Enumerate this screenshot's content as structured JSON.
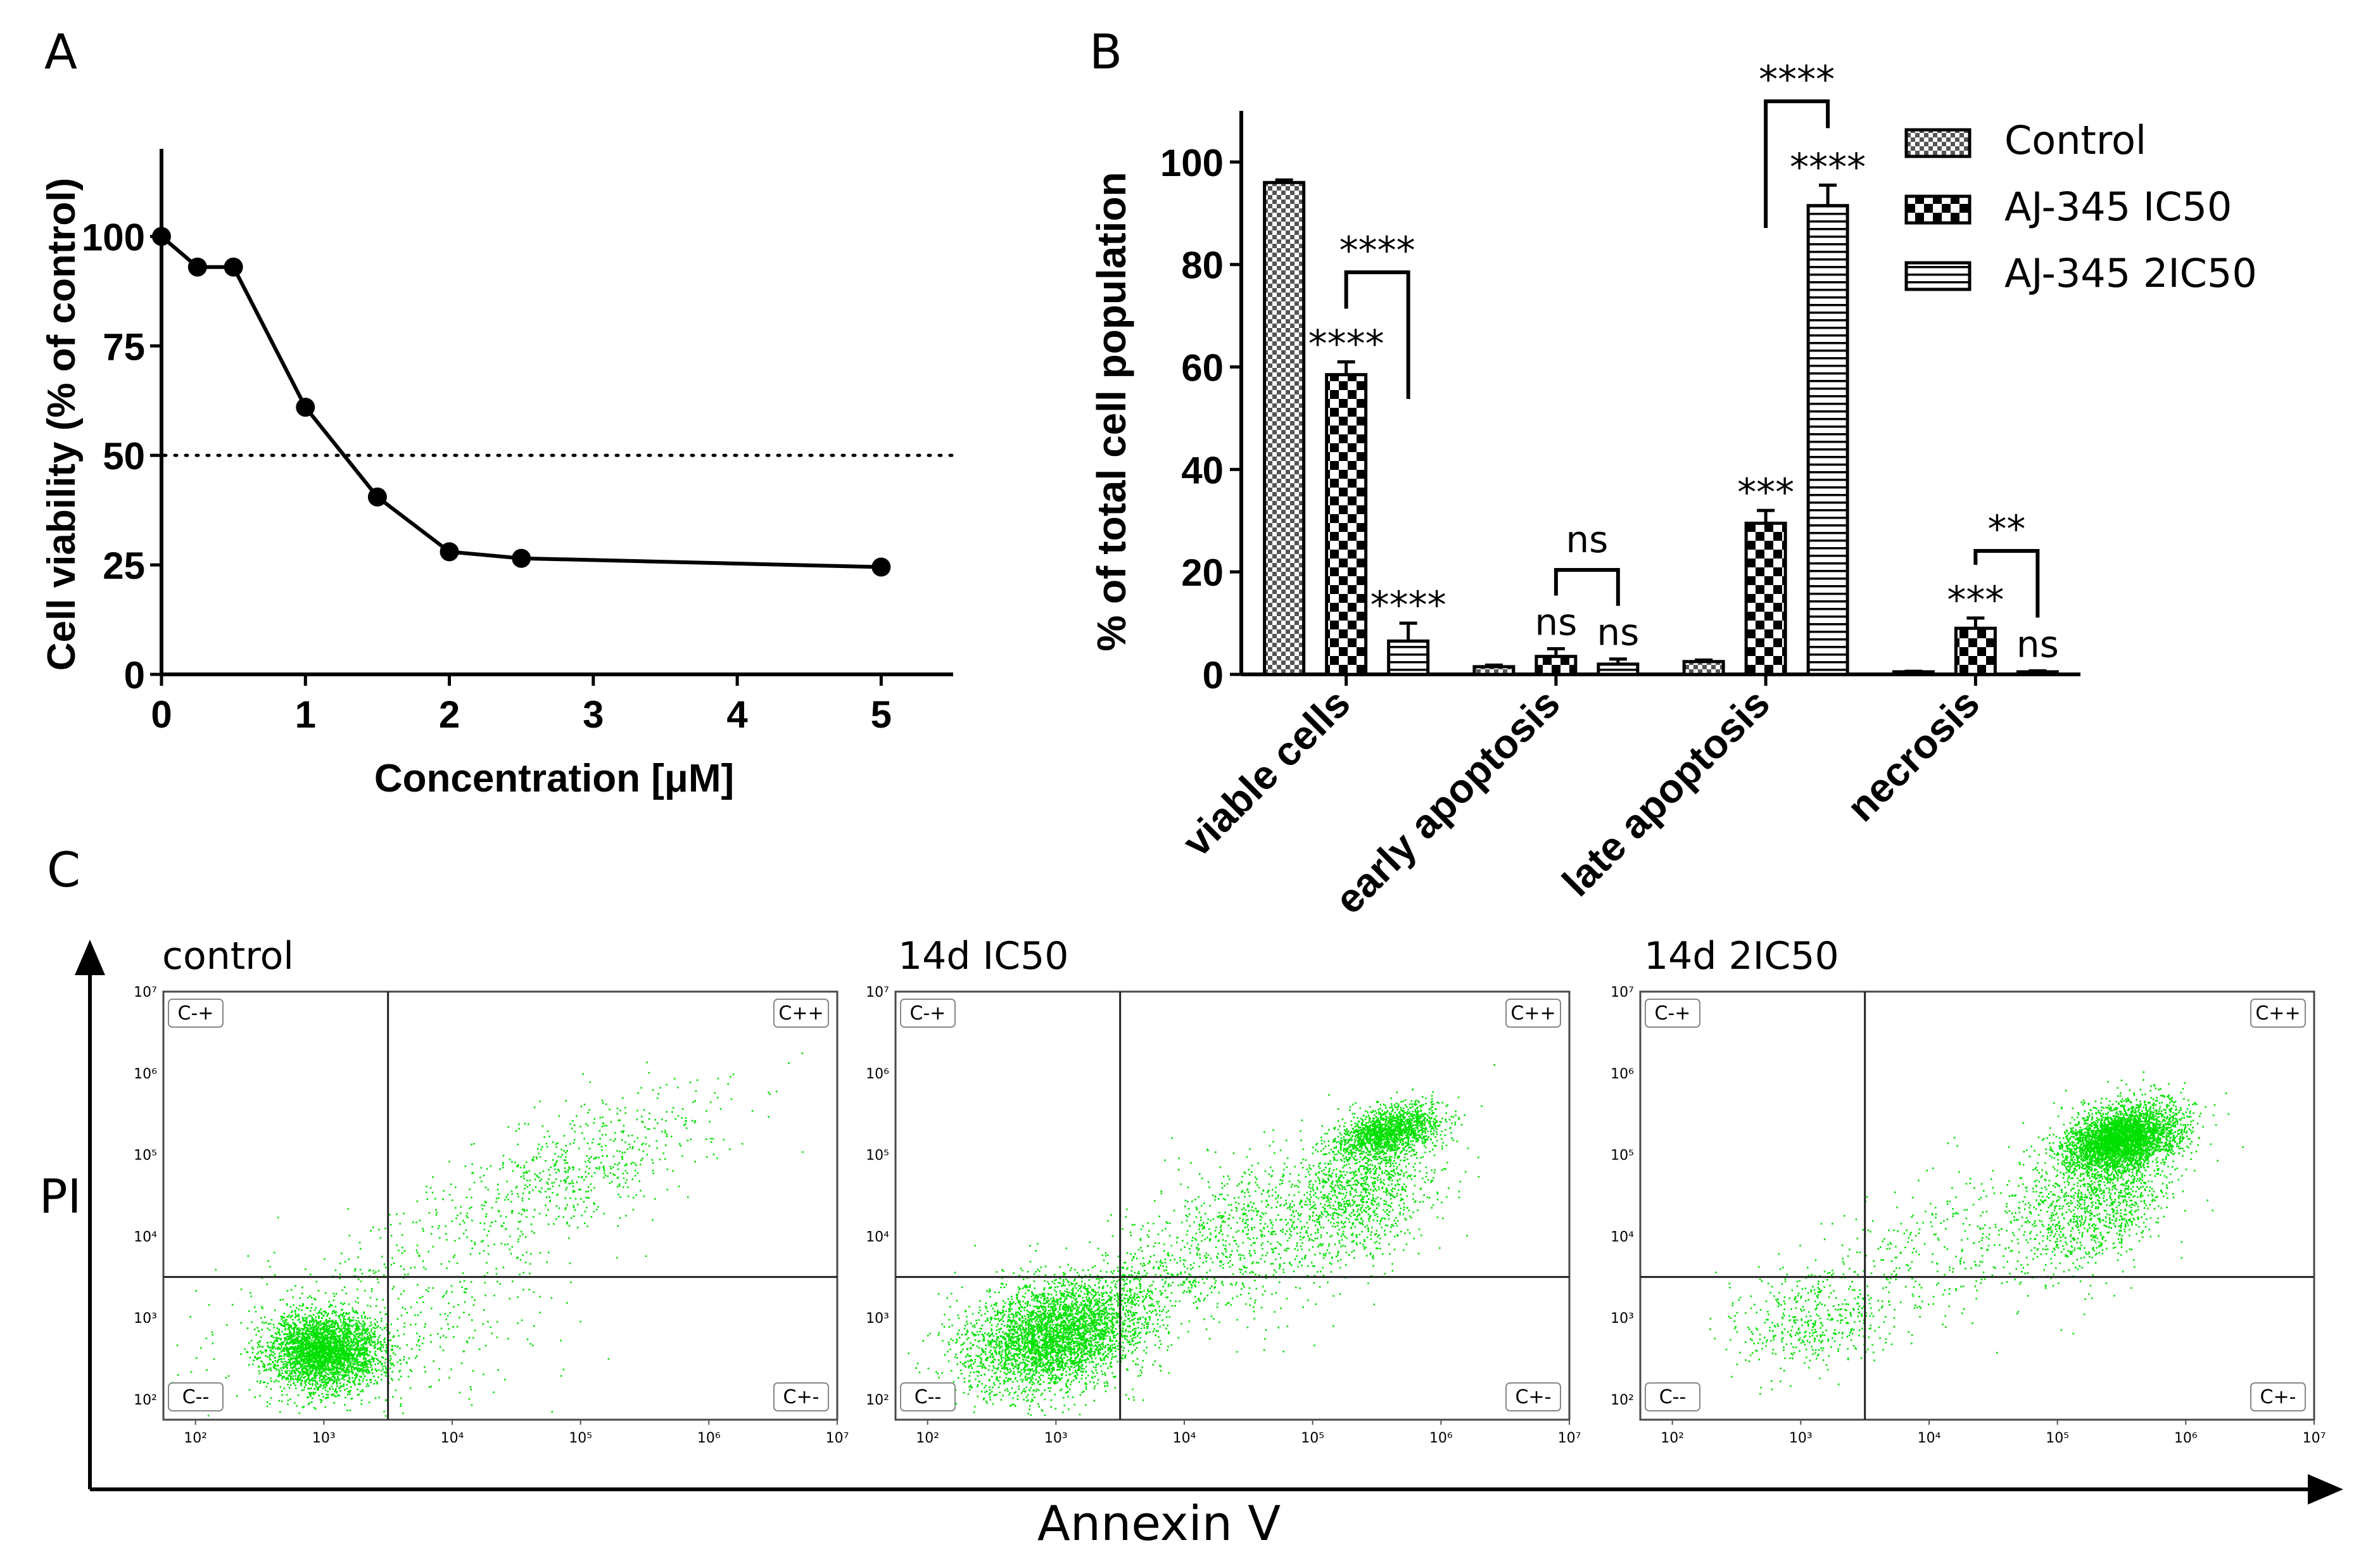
{
  "panel_letters": [
    "A",
    "B",
    "C"
  ],
  "chart_data": [
    {
      "panel": "A",
      "type": "line",
      "xlabel": "Concentration [μM]",
      "ylabel": "Cell viability (% of control)",
      "xlim": [
        0,
        5.5
      ],
      "ylim": [
        0,
        120
      ],
      "xticks": [
        0,
        1,
        2,
        3,
        4,
        5
      ],
      "yticks": [
        0,
        25,
        50,
        75,
        100
      ],
      "x": [
        0,
        0.25,
        0.5,
        1,
        1.5,
        2,
        2.5,
        5
      ],
      "y": [
        100,
        93,
        93,
        61,
        40.5,
        28,
        26.5,
        24.5
      ],
      "reference_line": {
        "y": 50,
        "style": "dotted"
      }
    },
    {
      "panel": "B",
      "type": "bar",
      "ylabel": "% of total cell population",
      "ylim": [
        0,
        110
      ],
      "yticks": [
        0,
        20,
        40,
        60,
        80,
        100
      ],
      "categories": [
        "viable cells",
        "early apoptosis",
        "late apoptosis",
        "necrosis"
      ],
      "series": [
        {
          "name": "Control",
          "pattern": "fine-check",
          "values": [
            96,
            1.5,
            2.5,
            0.5
          ],
          "errors": [
            0.5,
            0.3,
            0.3,
            0.1
          ]
        },
        {
          "name": "AJ-345 IC50",
          "pattern": "checker",
          "values": [
            58.5,
            3.5,
            29.5,
            9
          ],
          "errors": [
            2.5,
            1.5,
            2.5,
            2
          ]
        },
        {
          "name": "AJ-345 2IC50",
          "pattern": "h-lines",
          "values": [
            6.5,
            2,
            91.5,
            0.5
          ],
          "errors": [
            3.5,
            1,
            4,
            0.2
          ]
        }
      ],
      "bar_labels": [
        [
          "",
          "****",
          "****"
        ],
        [
          "",
          "ns",
          "ns"
        ],
        [
          "",
          "***",
          "****"
        ],
        [
          "",
          "***",
          "ns"
        ]
      ],
      "brackets": [
        {
          "category": 0,
          "label": "****"
        },
        {
          "category": 1,
          "label": "ns"
        },
        {
          "category": 2,
          "label": "****"
        },
        {
          "category": 3,
          "label": "**"
        }
      ],
      "legend_position": "top-right"
    },
    {
      "panel": "C",
      "type": "scatter",
      "xlabel": "Annexin V",
      "ylabel": "PI",
      "scale": "log",
      "x_tick_labels": [
        "10²",
        "10³",
        "10⁴",
        "10⁵",
        "10⁶",
        "10⁷"
      ],
      "y_tick_labels": [
        "10²",
        "10³",
        "10⁴",
        "10⁵",
        "10⁶",
        "10⁷"
      ],
      "gate": {
        "x": 3.5,
        "y": 3.5
      },
      "quadrant_labels": [
        "C-+",
        "C++",
        "C--",
        "C+-"
      ],
      "plots": [
        {
          "title": "control",
          "clusters": [
            {
              "cx": 3.0,
              "cy": 2.6,
              "sx": 0.22,
              "sy": 0.24,
              "n": 3200,
              "r": 0.0
            },
            {
              "cx": 4.9,
              "cy": 4.8,
              "sx": 0.6,
              "sy": 0.55,
              "n": 650,
              "r": 0.7
            },
            {
              "cx": 3.5,
              "cy": 3.0,
              "sx": 0.7,
              "sy": 0.6,
              "n": 500,
              "r": 0.3
            }
          ]
        },
        {
          "title": "14d IC50",
          "clusters": [
            {
              "cx": 3.0,
              "cy": 2.8,
              "sx": 0.35,
              "sy": 0.35,
              "n": 3800,
              "r": 0.3
            },
            {
              "cx": 5.6,
              "cy": 5.3,
              "sx": 0.2,
              "sy": 0.15,
              "n": 1400,
              "r": 0.4
            },
            {
              "cx": 5.4,
              "cy": 4.6,
              "sx": 0.25,
              "sy": 0.45,
              "n": 900,
              "r": 0.3
            },
            {
              "cx": 4.5,
              "cy": 4.0,
              "sx": 0.65,
              "sy": 0.6,
              "n": 1200,
              "r": 0.6
            }
          ]
        },
        {
          "title": "14d 2IC50",
          "clusters": [
            {
              "cx": 5.5,
              "cy": 5.2,
              "sx": 0.22,
              "sy": 0.2,
              "n": 3600,
              "r": 0.3
            },
            {
              "cx": 5.3,
              "cy": 4.5,
              "sx": 0.3,
              "sy": 0.45,
              "n": 1200,
              "r": 0.3
            },
            {
              "cx": 3.1,
              "cy": 3.0,
              "sx": 0.3,
              "sy": 0.3,
              "n": 450,
              "r": 0.2
            },
            {
              "cx": 4.3,
              "cy": 3.9,
              "sx": 0.6,
              "sy": 0.55,
              "n": 400,
              "r": 0.5
            }
          ]
        }
      ]
    }
  ]
}
